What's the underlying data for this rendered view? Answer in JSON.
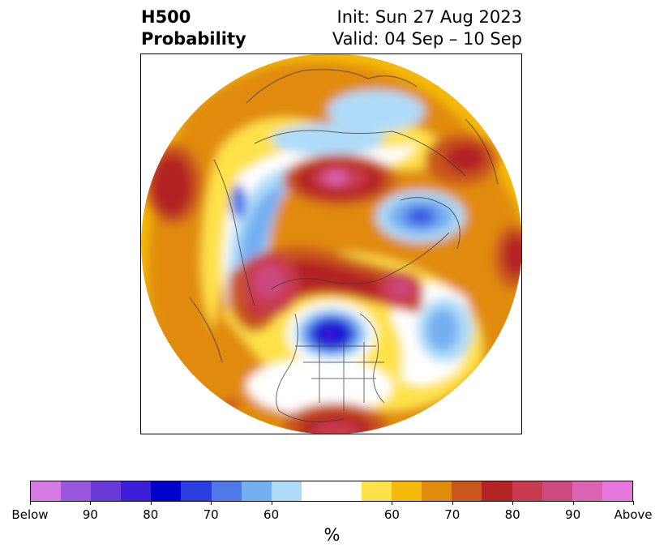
{
  "header": {
    "title_line1": "H500",
    "title_line2": "Probability",
    "init": "Init: Sun 27 Aug 2023",
    "valid": "Valid: 04 Sep – 10 Sep"
  },
  "colorbar": {
    "colors": [
      "#d67ae6",
      "#9b56de",
      "#6a3ad8",
      "#3d1fd8",
      "#0000cc",
      "#2a3ee0",
      "#4f79e6",
      "#74aff0",
      "#aedcf8",
      "#ffffff",
      "#ffffff",
      "#ffe24a",
      "#f5b90a",
      "#e08b0c",
      "#c9561a",
      "#b32424",
      "#c83a4e",
      "#cc4a80",
      "#db64b4",
      "#e878e0"
    ],
    "tick_labels": [
      "Below",
      "90",
      "80",
      "70",
      "60",
      "60",
      "70",
      "80",
      "90",
      "Above"
    ],
    "label": "%"
  }
}
